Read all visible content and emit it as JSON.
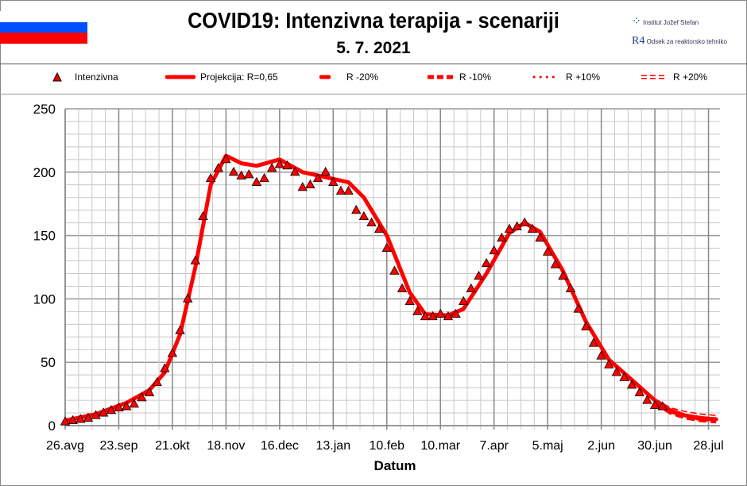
{
  "header": {
    "title": "COVID19: Intenzivna terapija - scenariji",
    "date": "5. 7. 2021",
    "logo_ijs": "Institut Jožef Stefan",
    "logo_r4": "Odsek za reaktorsko tehniko",
    "flag_colors": [
      "#ffffff",
      "#0050ff",
      "#ff0000"
    ]
  },
  "legend": [
    {
      "label": "Intenzivna",
      "style": "triangle"
    },
    {
      "label": "Projekcija: R=0,65",
      "style": "solid"
    },
    {
      "label": "R -20%",
      "style": "long-dash"
    },
    {
      "label": "R -10%",
      "style": "dash"
    },
    {
      "label": "R +10%",
      "style": "dots"
    },
    {
      "label": "R +20%",
      "style": "hollow-dash"
    }
  ],
  "chart_data": {
    "type": "line",
    "title": "COVID19: Intenzivna terapija - scenariji",
    "xlabel": "Datum",
    "ylabel": "",
    "ylim": [
      0,
      250
    ],
    "yticks": [
      0,
      50,
      100,
      150,
      200,
      250
    ],
    "xlim": [
      "2020-08-26",
      "2021-08-03"
    ],
    "xtick_labels": [
      "26.avg",
      "23.sep",
      "21.okt",
      "18.nov",
      "16.dec",
      "13.jan",
      "10.feb",
      "10.mar",
      "7.apr",
      "5.maj",
      "2.jun",
      "30.jun",
      "28.jul"
    ],
    "xtick_dates": [
      "2020-08-26",
      "2020-09-23",
      "2020-10-21",
      "2020-11-18",
      "2020-12-16",
      "2021-01-13",
      "2021-02-10",
      "2021-03-10",
      "2021-04-07",
      "2021-05-05",
      "2021-06-02",
      "2021-06-30",
      "2021-07-28"
    ],
    "grid": true,
    "color": "#ff0000",
    "series": [
      {
        "name": "Intenzivna",
        "marker": "triangle",
        "x": [
          "2020-08-26",
          "2020-08-30",
          "2020-09-03",
          "2020-09-07",
          "2020-09-11",
          "2020-09-15",
          "2020-09-19",
          "2020-09-23",
          "2020-09-27",
          "2020-10-01",
          "2020-10-05",
          "2020-10-09",
          "2020-10-13",
          "2020-10-17",
          "2020-10-21",
          "2020-10-25",
          "2020-10-29",
          "2020-11-02",
          "2020-11-06",
          "2020-11-10",
          "2020-11-14",
          "2020-11-18",
          "2020-11-22",
          "2020-11-26",
          "2020-11-30",
          "2020-12-04",
          "2020-12-08",
          "2020-12-12",
          "2020-12-16",
          "2020-12-20",
          "2020-12-24",
          "2020-12-28",
          "2021-01-01",
          "2021-01-05",
          "2021-01-09",
          "2021-01-13",
          "2021-01-17",
          "2021-01-21",
          "2021-01-25",
          "2021-01-29",
          "2021-02-02",
          "2021-02-06",
          "2021-02-10",
          "2021-02-14",
          "2021-02-18",
          "2021-02-22",
          "2021-02-26",
          "2021-03-02",
          "2021-03-06",
          "2021-03-10",
          "2021-03-14",
          "2021-03-18",
          "2021-03-22",
          "2021-03-26",
          "2021-03-30",
          "2021-04-03",
          "2021-04-07",
          "2021-04-11",
          "2021-04-15",
          "2021-04-19",
          "2021-04-23",
          "2021-04-27",
          "2021-05-01",
          "2021-05-05",
          "2021-05-09",
          "2021-05-13",
          "2021-05-17",
          "2021-05-21",
          "2021-05-25",
          "2021-05-29",
          "2021-06-02",
          "2021-06-06",
          "2021-06-10",
          "2021-06-14",
          "2021-06-18",
          "2021-06-22",
          "2021-06-26",
          "2021-06-30",
          "2021-07-04"
        ],
        "values": [
          3,
          4,
          5,
          6,
          8,
          10,
          12,
          14,
          15,
          17,
          22,
          26,
          34,
          45,
          57,
          75,
          100,
          130,
          165,
          195,
          203,
          210,
          200,
          197,
          198,
          192,
          195,
          203,
          206,
          205,
          200,
          188,
          190,
          195,
          200,
          192,
          185,
          185,
          170,
          165,
          160,
          155,
          140,
          122,
          108,
          98,
          90,
          86,
          86,
          88,
          86,
          88,
          98,
          108,
          118,
          128,
          138,
          148,
          155,
          157,
          160,
          155,
          148,
          137,
          127,
          118,
          108,
          92,
          78,
          65,
          55,
          48,
          42,
          38,
          32,
          26,
          20,
          16,
          15
        ]
      },
      {
        "name": "Projekcija: R=0,65",
        "style": "solid",
        "x": [
          "2020-08-26",
          "2020-09-11",
          "2020-09-27",
          "2020-10-09",
          "2020-10-17",
          "2020-10-25",
          "2020-11-02",
          "2020-11-10",
          "2020-11-18",
          "2020-11-26",
          "2020-12-04",
          "2020-12-16",
          "2020-12-28",
          "2021-01-09",
          "2021-01-21",
          "2021-01-29",
          "2021-02-10",
          "2021-02-22",
          "2021-03-02",
          "2021-03-14",
          "2021-03-22",
          "2021-04-03",
          "2021-04-15",
          "2021-04-23",
          "2021-05-01",
          "2021-05-13",
          "2021-05-25",
          "2021-06-06",
          "2021-06-18",
          "2021-06-30",
          "2021-07-08",
          "2021-07-16",
          "2021-07-24",
          "2021-08-01"
        ],
        "values": [
          4,
          9,
          18,
          28,
          42,
          72,
          125,
          190,
          213,
          207,
          205,
          210,
          200,
          196,
          192,
          180,
          150,
          105,
          88,
          87,
          92,
          120,
          152,
          160,
          153,
          122,
          82,
          52,
          36,
          20,
          12,
          8,
          6,
          5
        ]
      },
      {
        "name": "R -20%",
        "style": "long-dash",
        "x": [
          "2021-06-30",
          "2021-07-08",
          "2021-07-16",
          "2021-07-24",
          "2021-08-01"
        ],
        "values": [
          18,
          10,
          6,
          4,
          3
        ]
      },
      {
        "name": "R -10%",
        "style": "dash",
        "x": [
          "2021-06-30",
          "2021-07-08",
          "2021-07-16",
          "2021-07-24",
          "2021-08-01"
        ],
        "values": [
          18,
          11,
          7,
          5,
          4
        ]
      },
      {
        "name": "R +10%",
        "style": "dots",
        "x": [
          "2021-06-30",
          "2021-07-08",
          "2021-07-16",
          "2021-07-24",
          "2021-08-01"
        ],
        "values": [
          19,
          12,
          9,
          7,
          6
        ]
      },
      {
        "name": "R +20%",
        "style": "hollow-dash",
        "x": [
          "2021-06-30",
          "2021-07-08",
          "2021-07-16",
          "2021-07-24",
          "2021-08-01"
        ],
        "values": [
          20,
          13,
          10,
          8,
          7
        ]
      }
    ]
  }
}
